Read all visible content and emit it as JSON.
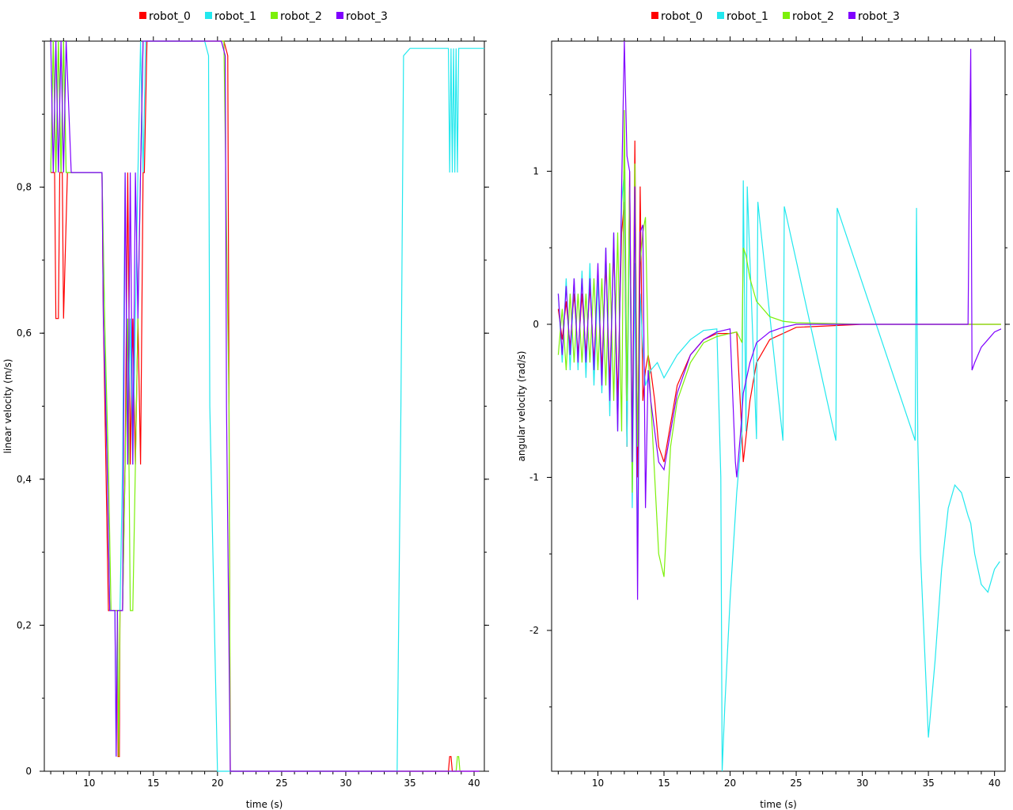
{
  "chart_data": [
    {
      "type": "line",
      "xlabel": "time (s)",
      "ylabel": "linear velocity (m/s)",
      "xlim": [
        6.5,
        40.8
      ],
      "ylim": [
        0,
        1.0
      ],
      "x_ticks": [
        10,
        15,
        20,
        25,
        30,
        35,
        40
      ],
      "y_ticks": [
        0,
        0.2,
        0.4,
        0.6,
        0.8
      ],
      "y_tick_labels": [
        "0",
        "0,2",
        "0,4",
        "0,6",
        "0,8"
      ],
      "legend_position": "top-center",
      "series": [
        {
          "name": "robot_0",
          "color": "#ff0000",
          "x": [
            7.0,
            7.3,
            7.4,
            7.6,
            7.7,
            7.9,
            8.0,
            8.3,
            8.6,
            11.0,
            11.1,
            11.3,
            11.5,
            11.7,
            12.2,
            12.25,
            12.35,
            12.4,
            12.6,
            12.8,
            13.0,
            13.2,
            13.4,
            13.6,
            13.8,
            14.0,
            14.2,
            14.3,
            14.5,
            15.0,
            19.0,
            20.5,
            20.8,
            20.9,
            21.0,
            38.0,
            38.1,
            38.2,
            38.3,
            40.4
          ],
          "y": [
            0.82,
            0.82,
            0.62,
            0.62,
            0.82,
            0.82,
            0.62,
            0.82,
            0.82,
            0.82,
            0.62,
            0.42,
            0.22,
            0.22,
            0.22,
            0.02,
            0.02,
            0.22,
            0.22,
            0.42,
            0.82,
            0.42,
            0.62,
            0.42,
            0.62,
            0.42,
            0.82,
            0.82,
            1.0,
            1.0,
            1.0,
            1.0,
            0.98,
            0.5,
            0.0,
            0.0,
            0.02,
            0.02,
            0.0,
            0.0
          ]
        },
        {
          "name": "robot_1",
          "color": "#22e8ee",
          "x": [
            7.0,
            7.2,
            7.4,
            7.6,
            7.8,
            8.0,
            8.2,
            8.6,
            11.0,
            11.2,
            11.4,
            11.6,
            12.0,
            12.1,
            12.2,
            12.4,
            12.6,
            12.8,
            13.0,
            13.2,
            13.4,
            13.6,
            13.8,
            14.0,
            14.2,
            14.4,
            15.0,
            19.0,
            19.3,
            19.4,
            20.0,
            20.4,
            20.6,
            21.0,
            34.0,
            34.3,
            34.5,
            35.0,
            36.0,
            37.0,
            38.0,
            38.1,
            38.2,
            38.3,
            38.4,
            38.5,
            38.6,
            38.7,
            38.8,
            40.0,
            40.8
          ],
          "y": [
            0.82,
            1.0,
            0.82,
            1.0,
            0.82,
            1.0,
            0.82,
            0.82,
            0.82,
            0.62,
            0.42,
            0.22,
            0.22,
            0.02,
            0.22,
            0.22,
            0.42,
            0.82,
            0.42,
            0.62,
            0.42,
            0.62,
            0.82,
            1.0,
            0.82,
            1.0,
            1.0,
            1.0,
            0.98,
            0.5,
            0.0,
            0.0,
            0.0,
            0.0,
            0.0,
            0.5,
            0.98,
            0.99,
            0.99,
            0.99,
            0.99,
            0.82,
            0.99,
            0.82,
            0.99,
            0.82,
            0.99,
            0.82,
            0.99,
            0.99,
            0.99
          ]
        },
        {
          "name": "robot_2",
          "color": "#7cf00a",
          "x": [
            7.0,
            7.2,
            7.4,
            7.6,
            7.8,
            8.0,
            8.2,
            8.6,
            11.0,
            11.2,
            11.5,
            11.7,
            12.0,
            12.2,
            12.3,
            12.4,
            12.6,
            12.8,
            13.0,
            13.2,
            13.4,
            13.6,
            13.8,
            14.0,
            14.2,
            14.4,
            15.0,
            19.0,
            20.5,
            20.9,
            21.0,
            38.6,
            38.7,
            38.8,
            38.9
          ],
          "y": [
            0.82,
            1.0,
            0.82,
            1.0,
            0.82,
            1.0,
            0.82,
            0.82,
            0.82,
            0.62,
            0.42,
            0.22,
            0.22,
            0.22,
            0.02,
            0.22,
            0.22,
            0.42,
            0.62,
            0.22,
            0.22,
            0.42,
            0.62,
            0.82,
            1.0,
            1.0,
            1.0,
            1.0,
            1.0,
            0.5,
            0.0,
            0.0,
            0.02,
            0.02,
            0.0
          ]
        },
        {
          "name": "robot_3",
          "color": "#7f00ff",
          "x": [
            7.0,
            7.2,
            7.4,
            7.6,
            7.8,
            8.0,
            8.2,
            8.6,
            11.0,
            11.1,
            11.4,
            11.6,
            12.0,
            12.1,
            12.2,
            12.4,
            12.6,
            12.8,
            13.0,
            13.2,
            13.4,
            13.6,
            13.8,
            14.0,
            14.2,
            14.4,
            15.0,
            19.0,
            20.3,
            20.6,
            20.7,
            20.8,
            21.0,
            40.4
          ],
          "y": [
            1.0,
            0.82,
            1.0,
            0.82,
            1.0,
            0.82,
            1.0,
            0.82,
            0.82,
            0.62,
            0.42,
            0.22,
            0.22,
            0.02,
            0.22,
            0.22,
            0.22,
            0.82,
            0.42,
            0.82,
            0.42,
            0.82,
            0.62,
            0.82,
            1.0,
            1.0,
            1.0,
            1.0,
            1.0,
            0.98,
            0.5,
            0.33,
            0.0,
            0.0
          ]
        }
      ]
    },
    {
      "type": "line",
      "xlabel": "time (s)",
      "ylabel": "angular velocity (rad/s)",
      "xlim": [
        6.5,
        40.8
      ],
      "ylim": [
        -2.92,
        1.85
      ],
      "x_ticks": [
        10,
        15,
        20,
        25,
        30,
        35,
        40
      ],
      "y_ticks": [
        -2,
        -1,
        0,
        1
      ],
      "y_tick_labels": [
        "-2",
        "-1",
        "0",
        "1"
      ],
      "legend_position": "top-center",
      "series": [
        {
          "name": "robot_0",
          "color": "#ff0000",
          "x": [
            7.0,
            7.3,
            7.6,
            7.9,
            8.2,
            8.5,
            8.8,
            9.1,
            9.4,
            9.7,
            10.0,
            10.3,
            10.6,
            10.9,
            11.2,
            11.5,
            11.8,
            12.0,
            12.2,
            12.4,
            12.6,
            12.8,
            13.0,
            13.2,
            13.4,
            13.6,
            13.8,
            14.0,
            14.3,
            14.6,
            15.0,
            16.0,
            17.0,
            18.0,
            19.0,
            20.0,
            20.5,
            21.0,
            21.5,
            22.0,
            23.0,
            25.0,
            30.0,
            35.0,
            40.5
          ],
          "y": [
            0.1,
            -0.1,
            0.15,
            -0.15,
            0.2,
            -0.2,
            0.2,
            -0.2,
            0.25,
            -0.25,
            0.3,
            -0.3,
            0.4,
            -0.4,
            0.5,
            -0.5,
            0.6,
            0.8,
            -0.8,
            1.0,
            -0.9,
            1.2,
            -1.0,
            0.9,
            -0.5,
            -0.3,
            -0.2,
            -0.3,
            -0.5,
            -0.8,
            -0.9,
            -0.4,
            -0.2,
            -0.1,
            -0.06,
            -0.06,
            -0.05,
            -0.9,
            -0.5,
            -0.25,
            -0.1,
            -0.02,
            0.0,
            0.0,
            0.0
          ]
        },
        {
          "name": "robot_1",
          "color": "#22e8ee",
          "x": [
            7.0,
            7.3,
            7.6,
            7.9,
            8.2,
            8.5,
            8.8,
            9.1,
            9.4,
            9.7,
            10.0,
            10.3,
            10.6,
            10.9,
            11.2,
            11.5,
            11.8,
            12.0,
            12.2,
            12.4,
            12.6,
            12.8,
            13.0,
            13.2,
            13.4,
            13.6,
            13.8,
            14.0,
            14.5,
            15.0,
            16.0,
            17.0,
            18.0,
            19.0,
            19.3,
            19.4,
            19.6,
            20.0,
            20.5,
            20.9,
            21.0,
            21.2,
            21.3,
            22.0,
            22.1,
            24.0,
            24.1,
            28.0,
            28.1,
            34.0,
            34.1,
            34.2,
            34.4,
            35.0,
            35.5,
            36.0,
            36.5,
            37.0,
            37.5,
            38.0,
            38.2,
            38.5,
            39.0,
            39.5,
            40.0,
            40.4
          ],
          "y": [
            0.2,
            -0.25,
            0.3,
            -0.3,
            0.3,
            -0.3,
            0.35,
            -0.35,
            0.4,
            -0.4,
            0.3,
            -0.45,
            0.5,
            -0.6,
            0.6,
            -0.7,
            0.8,
            1.0,
            -0.8,
            0.8,
            -1.2,
            0.4,
            -1.5,
            0.2,
            -0.15,
            -0.4,
            -0.35,
            -0.3,
            -0.25,
            -0.35,
            -0.2,
            -0.1,
            -0.04,
            -0.03,
            -1.0,
            -2.92,
            -2.5,
            -1.8,
            -1.1,
            -0.7,
            0.94,
            -0.7,
            0.9,
            -0.75,
            0.8,
            -0.76,
            0.77,
            -0.76,
            0.76,
            -0.76,
            0.76,
            -0.76,
            -1.5,
            -2.7,
            -2.2,
            -1.6,
            -1.2,
            -1.05,
            -1.1,
            -1.25,
            -1.3,
            -1.5,
            -1.7,
            -1.75,
            -1.6,
            -1.55
          ]
        },
        {
          "name": "robot_2",
          "color": "#7cf00a",
          "x": [
            7.0,
            7.3,
            7.6,
            7.9,
            8.2,
            8.5,
            8.8,
            9.1,
            9.4,
            9.7,
            10.0,
            10.3,
            10.6,
            10.9,
            11.2,
            11.5,
            11.8,
            12.0,
            12.2,
            12.4,
            12.6,
            12.8,
            13.0,
            13.2,
            13.4,
            13.6,
            13.8,
            14.0,
            14.3,
            14.6,
            15.0,
            15.5,
            16.0,
            17.0,
            18.0,
            19.0,
            20.0,
            20.5,
            20.9,
            21.0,
            21.2,
            21.5,
            22.0,
            23.0,
            24.0,
            25.0,
            30.0,
            35.0,
            40.5
          ],
          "y": [
            -0.2,
            0.1,
            -0.3,
            0.2,
            -0.25,
            0.2,
            -0.25,
            0.2,
            -0.25,
            0.3,
            -0.3,
            0.3,
            -0.4,
            0.4,
            -0.5,
            0.6,
            -0.7,
            1.4,
            -0.5,
            0.9,
            -1.1,
            1.05,
            -0.8,
            0.4,
            0.6,
            0.7,
            -0.2,
            -0.5,
            -1.0,
            -1.5,
            -1.65,
            -0.8,
            -0.5,
            -0.25,
            -0.12,
            -0.08,
            -0.06,
            -0.05,
            -0.12,
            0.5,
            0.45,
            0.3,
            0.15,
            0.05,
            0.02,
            0.01,
            0.0,
            0.0,
            0.0
          ]
        },
        {
          "name": "robot_3",
          "color": "#7f00ff",
          "x": [
            7.0,
            7.3,
            7.6,
            7.9,
            8.2,
            8.5,
            8.8,
            9.1,
            9.4,
            9.7,
            10.0,
            10.3,
            10.6,
            10.9,
            11.2,
            11.5,
            11.8,
            12.0,
            12.2,
            12.4,
            12.6,
            12.8,
            13.0,
            13.2,
            13.4,
            13.6,
            13.8,
            14.0,
            14.3,
            14.6,
            15.0,
            16.0,
            17.0,
            18.0,
            19.0,
            20.0,
            20.4,
            20.5,
            20.8,
            21.0,
            21.5,
            22.0,
            23.0,
            24.0,
            25.0,
            30.0,
            35.0,
            38.0,
            38.1,
            38.2,
            38.3,
            38.5,
            39.0,
            39.5,
            40.0,
            40.5
          ],
          "y": [
            0.2,
            -0.2,
            0.25,
            -0.2,
            0.3,
            -0.25,
            0.3,
            -0.25,
            0.3,
            -0.3,
            0.4,
            -0.4,
            0.5,
            -0.5,
            0.6,
            -0.7,
            0.9,
            1.85,
            1.1,
            1.0,
            -0.9,
            0.9,
            -1.8,
            0.6,
            0.65,
            -1.2,
            -0.3,
            -0.5,
            -0.7,
            -0.9,
            -0.95,
            -0.45,
            -0.2,
            -0.1,
            -0.05,
            -0.03,
            -0.9,
            -1.0,
            -0.7,
            -0.45,
            -0.25,
            -0.12,
            -0.05,
            -0.02,
            0.0,
            0.0,
            0.0,
            0.0,
            1.0,
            1.8,
            -0.3,
            -0.25,
            -0.15,
            -0.1,
            -0.05,
            -0.03
          ]
        }
      ]
    }
  ]
}
